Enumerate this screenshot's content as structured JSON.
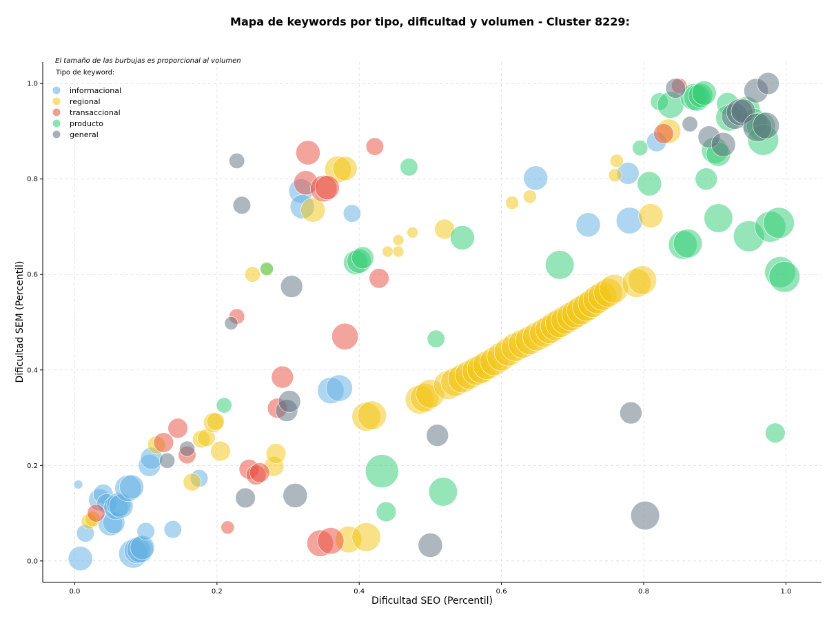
{
  "chart_data": {
    "type": "scatter",
    "title": "Mapa de keywords por tipo, dificultad y volumen - Cluster 8229:",
    "xlabel": "Dificultad SEO (Percentil)",
    "ylabel": "Dificultad SEM (Percentil)",
    "xlim": [
      -0.045,
      1.05
    ],
    "ylim": [
      -0.045,
      1.045
    ],
    "xticks": [
      0.0,
      0.2,
      0.4,
      0.6,
      0.8,
      1.0
    ],
    "xtick_labels": [
      "0.0",
      "0.2",
      "0.4",
      "0.6",
      "0.8",
      "1.0"
    ],
    "yticks": [
      0.0,
      0.2,
      0.4,
      0.6,
      0.8,
      1.0
    ],
    "ytick_labels": [
      "0.0",
      "0.2",
      "0.4",
      "0.6",
      "0.8",
      "1.0"
    ],
    "grid": true,
    "annotation": "El tamaño de las burbujas es proporcional al volumen",
    "legend": {
      "title": "Tipo de keyword:",
      "position": "top-left"
    },
    "series": [
      {
        "name": "informacional",
        "color": "#5DADE2",
        "points": [
          [
            0.005,
            0.16,
            0.8
          ],
          [
            0.008,
            0.005,
            2.2
          ],
          [
            0.015,
            0.058,
            1.6
          ],
          [
            0.035,
            0.128,
            2.0
          ],
          [
            0.04,
            0.14,
            1.8
          ],
          [
            0.045,
            0.12,
            1.8
          ],
          [
            0.05,
            0.078,
            2.2
          ],
          [
            0.055,
            0.08,
            2.0
          ],
          [
            0.058,
            0.112,
            2.2
          ],
          [
            0.062,
            0.118,
            2.2
          ],
          [
            0.065,
            0.115,
            2.2
          ],
          [
            0.075,
            0.152,
            2.4
          ],
          [
            0.08,
            0.155,
            2.2
          ],
          [
            0.082,
            0.015,
            2.6
          ],
          [
            0.088,
            0.022,
            2.4
          ],
          [
            0.092,
            0.024,
            2.4
          ],
          [
            0.095,
            0.028,
            2.2
          ],
          [
            0.1,
            0.062,
            1.6
          ],
          [
            0.105,
            0.2,
            2.0
          ],
          [
            0.108,
            0.215,
            2.0
          ],
          [
            0.138,
            0.066,
            1.6
          ],
          [
            0.175,
            0.173,
            1.6
          ],
          [
            0.318,
            0.775,
            2.2
          ],
          [
            0.32,
            0.742,
            2.2
          ],
          [
            0.36,
            0.357,
            2.4
          ],
          [
            0.372,
            0.362,
            2.4
          ],
          [
            0.39,
            0.728,
            1.6
          ],
          [
            0.648,
            0.802,
            2.2
          ],
          [
            0.722,
            0.704,
            2.2
          ],
          [
            0.778,
            0.812,
            2.0
          ],
          [
            0.78,
            0.713,
            2.4
          ],
          [
            0.818,
            0.878,
            1.8
          ]
        ]
      },
      {
        "name": "regional",
        "color": "#F1C40F",
        "points": [
          [
            0.02,
            0.083,
            1.4
          ],
          [
            0.025,
            0.088,
            1.4
          ],
          [
            0.115,
            0.243,
            1.6
          ],
          [
            0.165,
            0.165,
            1.6
          ],
          [
            0.178,
            0.255,
            1.6
          ],
          [
            0.185,
            0.258,
            1.6
          ],
          [
            0.195,
            0.29,
            1.8
          ],
          [
            0.198,
            0.292,
            1.6
          ],
          [
            0.205,
            0.23,
            1.8
          ],
          [
            0.25,
            0.6,
            1.4
          ],
          [
            0.27,
            0.61,
            1.2
          ],
          [
            0.28,
            0.198,
            1.8
          ],
          [
            0.283,
            0.225,
            1.8
          ],
          [
            0.335,
            0.735,
            2.2
          ],
          [
            0.37,
            0.82,
            2.4
          ],
          [
            0.38,
            0.822,
            2.2
          ],
          [
            0.385,
            0.045,
            2.4
          ],
          [
            0.41,
            0.302,
            2.6
          ],
          [
            0.418,
            0.305,
            2.6
          ],
          [
            0.41,
            0.05,
            2.6
          ],
          [
            0.44,
            0.648,
            1.0
          ],
          [
            0.455,
            0.648,
            1.0
          ],
          [
            0.455,
            0.672,
            1.0
          ],
          [
            0.475,
            0.688,
            1.0
          ],
          [
            0.52,
            0.695,
            1.8
          ],
          [
            0.615,
            0.75,
            1.2
          ],
          [
            0.64,
            0.763,
            1.2
          ],
          [
            0.76,
            0.808,
            1.2
          ],
          [
            0.762,
            0.838,
            1.2
          ],
          [
            0.81,
            0.723,
            2.2
          ],
          [
            0.835,
            0.9,
            2.2
          ],
          [
            0.485,
            0.338,
            2.6
          ],
          [
            0.492,
            0.342,
            2.6
          ],
          [
            0.5,
            0.35,
            2.6
          ],
          [
            0.525,
            0.368,
            2.6
          ],
          [
            0.535,
            0.375,
            2.6
          ],
          [
            0.545,
            0.382,
            2.6
          ],
          [
            0.555,
            0.39,
            2.6
          ],
          [
            0.565,
            0.398,
            2.6
          ],
          [
            0.572,
            0.402,
            2.6
          ],
          [
            0.58,
            0.41,
            2.6
          ],
          [
            0.59,
            0.418,
            2.6
          ],
          [
            0.6,
            0.428,
            2.6
          ],
          [
            0.61,
            0.438,
            2.6
          ],
          [
            0.62,
            0.448,
            2.6
          ],
          [
            0.63,
            0.455,
            2.6
          ],
          [
            0.64,
            0.462,
            2.6
          ],
          [
            0.65,
            0.47,
            2.6
          ],
          [
            0.66,
            0.478,
            2.6
          ],
          [
            0.668,
            0.485,
            2.6
          ],
          [
            0.675,
            0.492,
            2.6
          ],
          [
            0.682,
            0.498,
            2.6
          ],
          [
            0.69,
            0.505,
            2.6
          ],
          [
            0.698,
            0.512,
            2.6
          ],
          [
            0.705,
            0.518,
            2.6
          ],
          [
            0.712,
            0.525,
            2.6
          ],
          [
            0.72,
            0.532,
            2.6
          ],
          [
            0.728,
            0.54,
            2.6
          ],
          [
            0.735,
            0.548,
            2.6
          ],
          [
            0.742,
            0.555,
            2.6
          ],
          [
            0.75,
            0.562,
            2.6
          ],
          [
            0.758,
            0.57,
            2.6
          ],
          [
            0.79,
            0.582,
            2.6
          ],
          [
            0.798,
            0.588,
            2.6
          ]
        ]
      },
      {
        "name": "transaccional",
        "color": "#E74C3C",
        "points": [
          [
            0.03,
            0.1,
            1.6
          ],
          [
            0.125,
            0.248,
            1.8
          ],
          [
            0.145,
            0.278,
            1.8
          ],
          [
            0.158,
            0.222,
            1.6
          ],
          [
            0.215,
            0.07,
            1.2
          ],
          [
            0.228,
            0.512,
            1.4
          ],
          [
            0.245,
            0.192,
            1.8
          ],
          [
            0.255,
            0.18,
            1.8
          ],
          [
            0.26,
            0.185,
            1.8
          ],
          [
            0.285,
            0.32,
            1.8
          ],
          [
            0.292,
            0.385,
            2.0
          ],
          [
            0.328,
            0.855,
            2.2
          ],
          [
            0.325,
            0.792,
            2.2
          ],
          [
            0.35,
            0.78,
            2.4
          ],
          [
            0.355,
            0.782,
            2.2
          ],
          [
            0.345,
            0.037,
            2.4
          ],
          [
            0.36,
            0.042,
            2.4
          ],
          [
            0.38,
            0.47,
            2.4
          ],
          [
            0.422,
            0.868,
            1.6
          ],
          [
            0.428,
            0.592,
            1.8
          ],
          [
            0.828,
            0.895,
            1.8
          ],
          [
            0.85,
            0.995,
            1.4
          ]
        ]
      },
      {
        "name": "producto",
        "color": "#2ECC71",
        "points": [
          [
            0.21,
            0.326,
            1.4
          ],
          [
            0.27,
            0.612,
            1.2
          ],
          [
            0.395,
            0.625,
            2.2
          ],
          [
            0.4,
            0.628,
            2.2
          ],
          [
            0.405,
            0.635,
            2.0
          ],
          [
            0.432,
            0.188,
            3.0
          ],
          [
            0.438,
            0.103,
            1.8
          ],
          [
            0.47,
            0.825,
            1.6
          ],
          [
            0.508,
            0.465,
            1.6
          ],
          [
            0.518,
            0.145,
            2.6
          ],
          [
            0.545,
            0.677,
            2.2
          ],
          [
            0.682,
            0.62,
            2.6
          ],
          [
            0.795,
            0.865,
            1.4
          ],
          [
            0.808,
            0.79,
            2.2
          ],
          [
            0.822,
            0.962,
            1.6
          ],
          [
            0.838,
            0.955,
            2.4
          ],
          [
            0.855,
            0.662,
            2.6
          ],
          [
            0.862,
            0.665,
            2.6
          ],
          [
            0.87,
            0.972,
            2.4
          ],
          [
            0.875,
            0.97,
            2.4
          ],
          [
            0.88,
            0.975,
            2.2
          ],
          [
            0.885,
            0.98,
            2.2
          ],
          [
            0.888,
            0.8,
            2.0
          ],
          [
            0.9,
            0.86,
            2.4
          ],
          [
            0.905,
            0.852,
            2.2
          ],
          [
            0.905,
            0.718,
            2.6
          ],
          [
            0.918,
            0.958,
            2.0
          ],
          [
            0.92,
            0.928,
            2.4
          ],
          [
            0.945,
            0.945,
            2.4
          ],
          [
            0.948,
            0.68,
            2.8
          ],
          [
            0.955,
            0.92,
            2.4
          ],
          [
            0.965,
            0.91,
            2.6
          ],
          [
            0.968,
            0.882,
            2.8
          ],
          [
            0.978,
            0.7,
            2.8
          ],
          [
            0.99,
            0.708,
            2.8
          ],
          [
            0.992,
            0.605,
            2.8
          ],
          [
            0.998,
            0.595,
            2.8
          ],
          [
            0.985,
            0.268,
            1.8
          ]
        ]
      },
      {
        "name": "general",
        "color": "#5D6D7E",
        "points": [
          [
            0.13,
            0.21,
            1.4
          ],
          [
            0.158,
            0.235,
            1.4
          ],
          [
            0.22,
            0.498,
            1.2
          ],
          [
            0.228,
            0.838,
            1.4
          ],
          [
            0.235,
            0.745,
            1.6
          ],
          [
            0.24,
            0.132,
            1.8
          ],
          [
            0.298,
            0.315,
            2.0
          ],
          [
            0.302,
            0.334,
            2.0
          ],
          [
            0.305,
            0.575,
            2.0
          ],
          [
            0.31,
            0.137,
            2.2
          ],
          [
            0.5,
            0.033,
            2.2
          ],
          [
            0.51,
            0.263,
            2.0
          ],
          [
            0.782,
            0.31,
            2.0
          ],
          [
            0.802,
            0.095,
            2.6
          ],
          [
            0.845,
            0.99,
            1.8
          ],
          [
            0.865,
            0.915,
            1.4
          ],
          [
            0.892,
            0.888,
            2.0
          ],
          [
            0.912,
            0.872,
            2.2
          ],
          [
            0.928,
            0.932,
            2.4
          ],
          [
            0.935,
            0.94,
            2.4
          ],
          [
            0.94,
            0.942,
            2.2
          ],
          [
            0.958,
            0.985,
            2.2
          ],
          [
            0.96,
            0.908,
            2.6
          ],
          [
            0.972,
            0.912,
            2.4
          ],
          [
            0.975,
            1.0,
            2.0
          ]
        ]
      }
    ]
  }
}
